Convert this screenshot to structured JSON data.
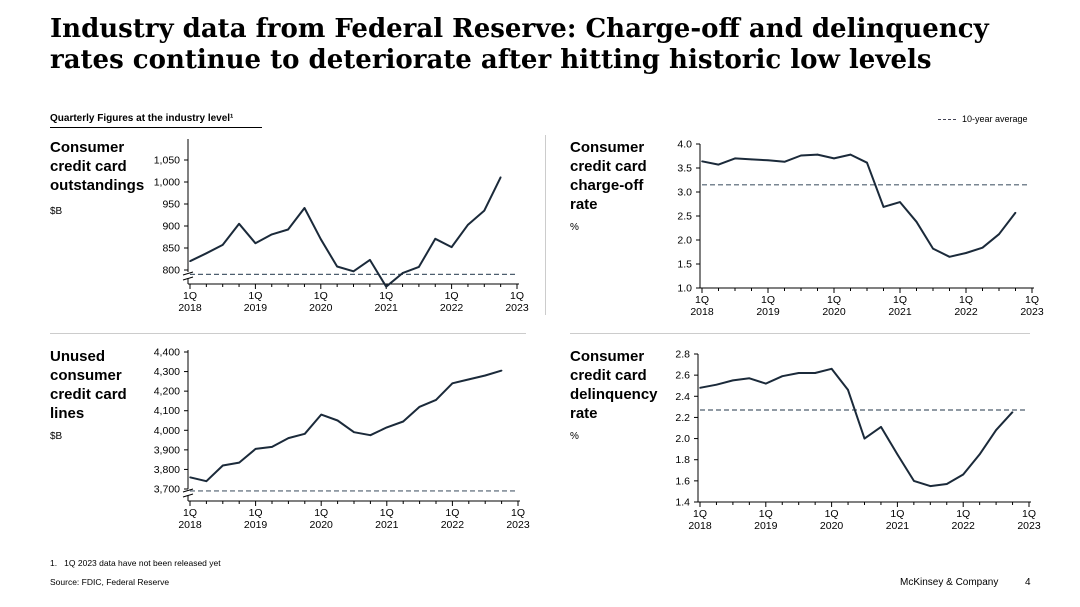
{
  "title_lines": [
    "Industry data from Federal Reserve: Charge-off and delinquency",
    "rates continue to deteriorate after hitting historic low levels"
  ],
  "subtitle": "Quarterly Figures at the industry level¹",
  "legend_label": "10-year average",
  "footnote": "1.   1Q 2023 data have not been released yet",
  "source": "Source: FDIC, Federal Reserve",
  "brand": "McKinsey & Company",
  "page_number": "4",
  "colors": {
    "line": "#1b2a3a",
    "avg": "#4d5e6e"
  },
  "chart_data": [
    {
      "id": "outstandings",
      "type": "line",
      "label_lines": [
        "Consumer",
        "credit card",
        "outstandings"
      ],
      "unit": "$B",
      "categories": [
        "1Q 2018",
        "2Q 2018",
        "3Q 2018",
        "4Q 2018",
        "1Q 2019",
        "2Q 2019",
        "3Q 2019",
        "4Q 2019",
        "1Q 2020",
        "2Q 2020",
        "3Q 2020",
        "4Q 2020",
        "1Q 2021",
        "2Q 2021",
        "3Q 2021",
        "4Q 2021",
        "1Q 2022",
        "2Q 2022",
        "3Q 2022",
        "4Q 2022"
      ],
      "values": [
        820,
        838,
        857,
        905,
        861,
        881,
        892,
        941,
        870,
        808,
        797,
        823,
        762,
        793,
        807,
        871,
        852,
        903,
        935,
        1011
      ],
      "average": 790,
      "ylim": [
        750,
        1050
      ],
      "yticks": [
        800,
        850,
        900,
        950,
        1000,
        1050
      ],
      "ytick_labels": [
        "800",
        "850",
        "900",
        "950",
        "1,000",
        "1,050"
      ],
      "axis_break": true,
      "xtick_labels": [
        [
          "1Q",
          "2018"
        ],
        [
          "1Q",
          "2019"
        ],
        [
          "1Q",
          "2020"
        ],
        [
          "1Q",
          "2021"
        ],
        [
          "1Q",
          "2022"
        ],
        [
          "1Q",
          "2023"
        ]
      ]
    },
    {
      "id": "chargeoff",
      "type": "line",
      "label_lines": [
        "Consumer",
        "credit card",
        "charge-off",
        "rate"
      ],
      "unit": "%",
      "categories": [
        "1Q 2018",
        "2Q 2018",
        "3Q 2018",
        "4Q 2018",
        "1Q 2019",
        "2Q 2019",
        "3Q 2019",
        "4Q 2019",
        "1Q 2020",
        "2Q 2020",
        "3Q 2020",
        "4Q 2020",
        "1Q 2021",
        "2Q 2021",
        "3Q 2021",
        "4Q 2021",
        "1Q 2022",
        "2Q 2022",
        "3Q 2022",
        "4Q 2022"
      ],
      "values": [
        3.64,
        3.57,
        3.7,
        3.68,
        3.66,
        3.63,
        3.76,
        3.78,
        3.7,
        3.78,
        3.61,
        2.69,
        2.79,
        2.38,
        1.82,
        1.65,
        1.73,
        1.84,
        2.12,
        2.57
      ],
      "average": 3.15,
      "ylim": [
        1.0,
        4.0
      ],
      "yticks": [
        1.0,
        1.5,
        2.0,
        2.5,
        3.0,
        3.5,
        4.0
      ],
      "ytick_labels": [
        "1.0",
        "1.5",
        "2.0",
        "2.5",
        "3.0",
        "3.5",
        "4.0"
      ],
      "axis_break": false,
      "xtick_labels": [
        [
          "1Q",
          "2018"
        ],
        [
          "1Q",
          "2019"
        ],
        [
          "1Q",
          "2020"
        ],
        [
          "1Q",
          "2021"
        ],
        [
          "1Q",
          "2022"
        ],
        [
          "1Q",
          "2023"
        ]
      ]
    },
    {
      "id": "unused",
      "type": "line",
      "label_lines": [
        "Unused",
        "consumer",
        "credit card",
        "lines"
      ],
      "unit": "$B",
      "categories": [
        "1Q 2018",
        "2Q 2018",
        "3Q 2018",
        "4Q 2018",
        "1Q 2019",
        "2Q 2019",
        "3Q 2019",
        "4Q 2019",
        "1Q 2020",
        "2Q 2020",
        "3Q 2020",
        "4Q 2020",
        "1Q 2021",
        "2Q 2021",
        "3Q 2021",
        "4Q 2021",
        "1Q 2022",
        "2Q 2022",
        "3Q 2022",
        "4Q 2022"
      ],
      "values": [
        3760,
        3740,
        3820,
        3835,
        3905,
        3915,
        3960,
        3982,
        4080,
        4050,
        3990,
        3975,
        4015,
        4045,
        4120,
        4155,
        4240,
        4260,
        4280,
        4305
      ],
      "average": 3690,
      "ylim": [
        3650,
        4400
      ],
      "yticks": [
        3700,
        3800,
        3900,
        4000,
        4100,
        4200,
        4300,
        4400
      ],
      "ytick_labels": [
        "3,700",
        "3,800",
        "3,900",
        "4,000",
        "4,100",
        "4,200",
        "4,300",
        "4,400"
      ],
      "axis_break": true,
      "xtick_labels": [
        [
          "1Q",
          "2018"
        ],
        [
          "1Q",
          "2019"
        ],
        [
          "1Q",
          "2020"
        ],
        [
          "1Q",
          "2021"
        ],
        [
          "1Q",
          "2022"
        ],
        [
          "1Q",
          "2023"
        ]
      ]
    },
    {
      "id": "delinquency",
      "type": "line",
      "label_lines": [
        "Consumer",
        "credit card",
        "delinquency",
        "rate"
      ],
      "unit": "%",
      "categories": [
        "1Q 2018",
        "2Q 2018",
        "3Q 2018",
        "4Q 2018",
        "1Q 2019",
        "2Q 2019",
        "3Q 2019",
        "4Q 2019",
        "1Q 2020",
        "2Q 2020",
        "3Q 2020",
        "4Q 2020",
        "1Q 2021",
        "2Q 2021",
        "3Q 2021",
        "4Q 2021",
        "1Q 2022",
        "2Q 2022",
        "3Q 2022",
        "4Q 2022"
      ],
      "values": [
        2.48,
        2.51,
        2.55,
        2.57,
        2.52,
        2.59,
        2.62,
        2.62,
        2.66,
        2.46,
        2.0,
        2.11,
        1.85,
        1.6,
        1.55,
        1.57,
        1.66,
        1.85,
        2.08,
        2.25
      ],
      "average": 2.27,
      "ylim": [
        1.4,
        2.8
      ],
      "yticks": [
        1.4,
        1.6,
        1.8,
        2.0,
        2.2,
        2.4,
        2.6,
        2.8
      ],
      "ytick_labels": [
        "1.4",
        "1.6",
        "1.8",
        "2.0",
        "2.2",
        "2.4",
        "2.6",
        "2.8"
      ],
      "axis_break": false,
      "xtick_labels": [
        [
          "1Q",
          "2018"
        ],
        [
          "1Q",
          "2019"
        ],
        [
          "1Q",
          "2020"
        ],
        [
          "1Q",
          "2021"
        ],
        [
          "1Q",
          "2022"
        ],
        [
          "1Q",
          "2023"
        ]
      ]
    }
  ]
}
